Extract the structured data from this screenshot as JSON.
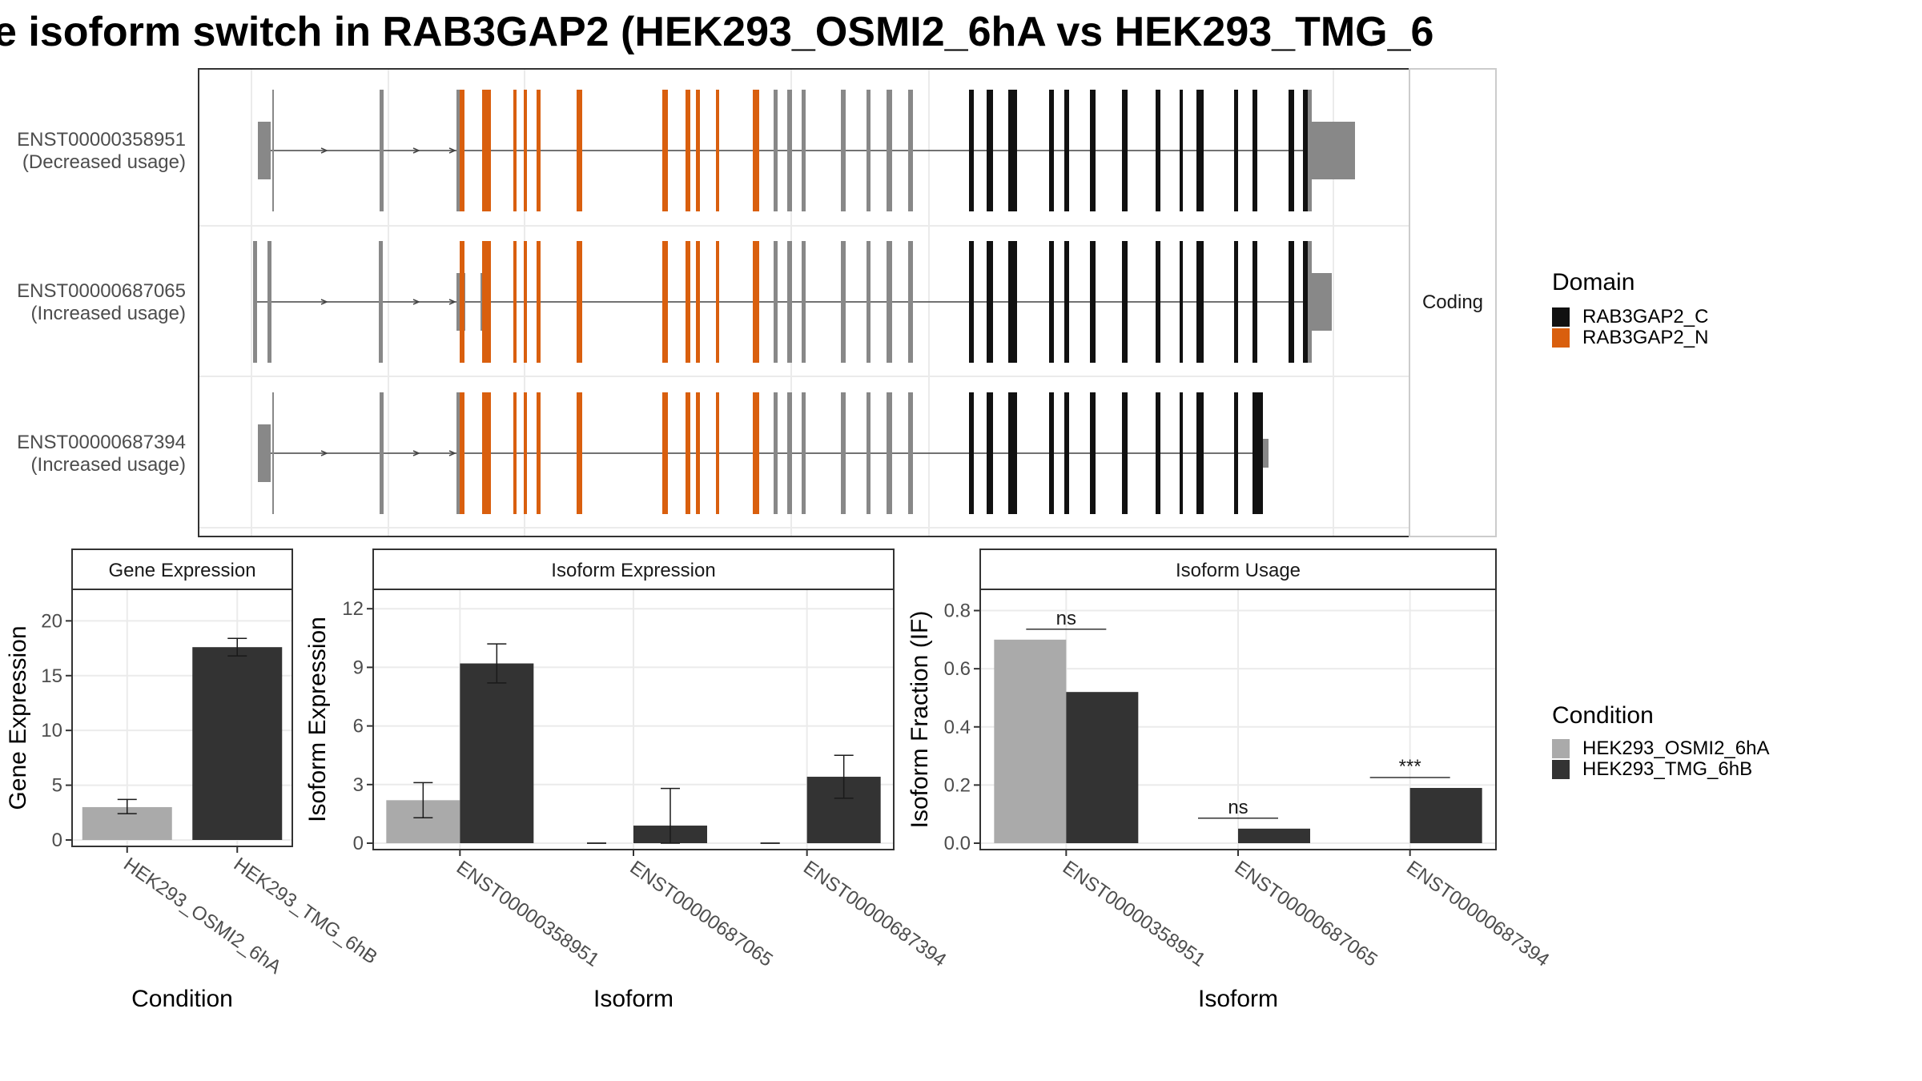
{
  "title": "e isoform switch in RAB3GAP2 (HEK293_OSMI2_6hA vs HEK293_TMG_6",
  "structure_panel": {
    "strip_label": "Coding",
    "isoforms": [
      {
        "id": "ENST00000358951",
        "note": "(Decreased usage)"
      },
      {
        "id": "ENST00000687065",
        "note": "(Increased usage)"
      },
      {
        "id": "ENST00000687394",
        "note": "(Increased usage)"
      }
    ]
  },
  "domain_legend": {
    "title": "Domain",
    "items": [
      {
        "label": "RAB3GAP2_C",
        "color": "#111111"
      },
      {
        "label": "RAB3GAP2_N",
        "color": "#d95f0e"
      }
    ]
  },
  "condition_legend": {
    "title": "Condition",
    "items": [
      {
        "label": "HEK293_OSMI2_6hA",
        "color": "#aaaaaa"
      },
      {
        "label": "HEK293_TMG_6hB",
        "color": "#333333"
      }
    ]
  },
  "chart_data": [
    {
      "type": "bar",
      "title": "Gene Expression",
      "xlabel": "Condition",
      "ylabel": "Gene Expression",
      "categories": [
        "HEK293_OSMI2_6hA",
        "HEK293_TMG_6hB"
      ],
      "values": [
        3.0,
        17.6
      ],
      "error_low": [
        2.4,
        16.8
      ],
      "error_high": [
        3.7,
        18.4
      ],
      "ylim": [
        0,
        22
      ],
      "yticks": [
        "0",
        "5",
        "10",
        "15",
        "20"
      ]
    },
    {
      "type": "bar",
      "title": "Isoform Expression",
      "xlabel": "Isoform",
      "ylabel": "Isoform Expression",
      "categories": [
        "ENST00000358951",
        "ENST00000687065",
        "ENST00000687394"
      ],
      "series": [
        {
          "name": "HEK293_OSMI2_6hA",
          "values": [
            2.2,
            0.0,
            0.0
          ],
          "error_low": [
            1.3,
            0.0,
            0.0
          ],
          "error_high": [
            3.1,
            0.0,
            0.0
          ]
        },
        {
          "name": "HEK293_TMG_6hB",
          "values": [
            9.2,
            0.9,
            3.4
          ],
          "error_low": [
            8.2,
            0.0,
            2.3
          ],
          "error_high": [
            10.2,
            2.8,
            4.5
          ]
        }
      ],
      "ylim": [
        0,
        12.5
      ],
      "yticks": [
        "0",
        "3",
        "6",
        "9",
        "12"
      ]
    },
    {
      "type": "bar",
      "title": "Isoform Usage",
      "xlabel": "Isoform",
      "ylabel": "Isoform Fraction (IF)",
      "categories": [
        "ENST00000358951",
        "ENST00000687065",
        "ENST00000687394"
      ],
      "series": [
        {
          "name": "HEK293_OSMI2_6hA",
          "values": [
            0.7,
            0.0,
            0.0
          ]
        },
        {
          "name": "HEK293_TMG_6hB",
          "values": [
            0.52,
            0.05,
            0.19
          ]
        }
      ],
      "significance": [
        "ns",
        "ns",
        "***"
      ],
      "ylim": [
        0,
        0.84
      ],
      "yticks": [
        "0.0",
        "0.2",
        "0.4",
        "0.6",
        "0.8"
      ]
    }
  ]
}
